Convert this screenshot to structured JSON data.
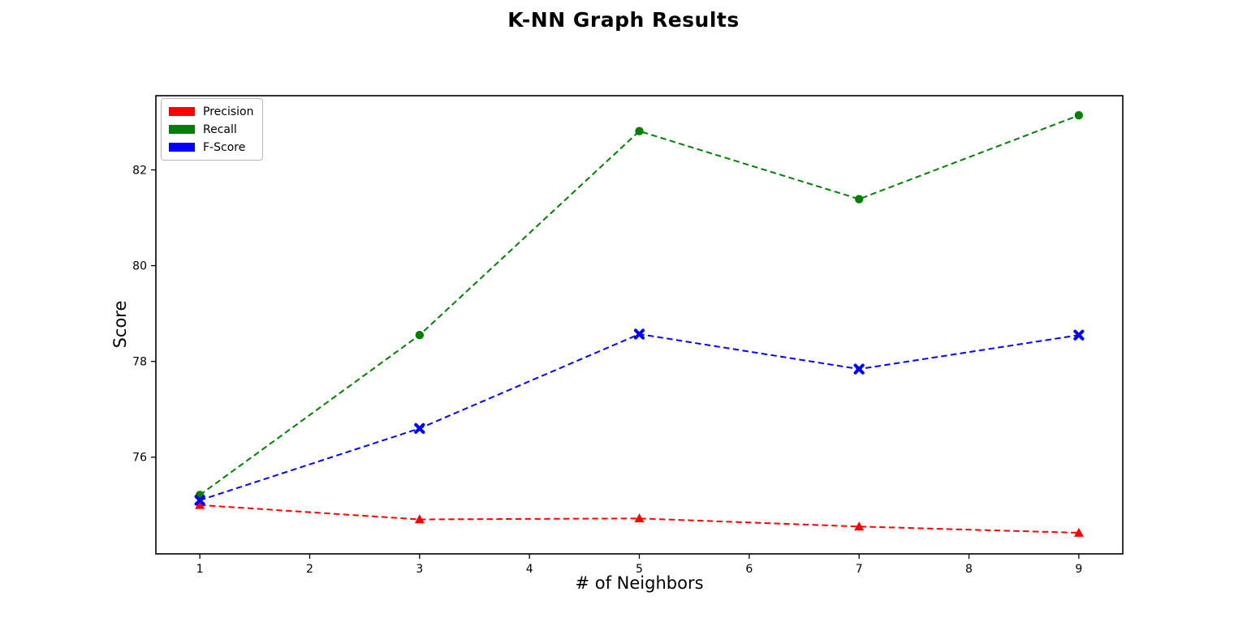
{
  "figure": {
    "background": "#ffffff",
    "text_color": "#000000",
    "spine_color": "#000000"
  },
  "chart_data": {
    "type": "line",
    "title": "K-NN Graph Results",
    "xlabel": "# of Neighbors",
    "ylabel": "Score",
    "x": [
      1,
      3,
      5,
      7,
      9
    ],
    "series": [
      {
        "name": "Precision",
        "color": "#ff0000",
        "marker": "triangle-up",
        "linestyle": "dashed",
        "values": [
          75.0,
          74.7,
          74.72,
          74.55,
          74.42
        ]
      },
      {
        "name": "Recall",
        "color": "#008000",
        "marker": "circle",
        "linestyle": "dashed",
        "values": [
          75.21,
          78.55,
          82.81,
          81.39,
          83.14
        ]
      },
      {
        "name": "F-Score",
        "color": "#0000ff",
        "marker": "x",
        "linestyle": "dashed",
        "values": [
          75.1,
          76.6,
          78.57,
          77.84,
          78.55
        ]
      }
    ],
    "xticks": [
      1,
      2,
      3,
      4,
      5,
      6,
      7,
      8,
      9
    ],
    "yticks": [
      76,
      78,
      80,
      82
    ],
    "xlim": [
      0.6,
      9.4
    ],
    "ylim": [
      73.98,
      83.55
    ],
    "legend_position": "upper-left",
    "legend_entries": [
      "Precision",
      "Recall",
      "F-Score"
    ],
    "grid": false
  }
}
